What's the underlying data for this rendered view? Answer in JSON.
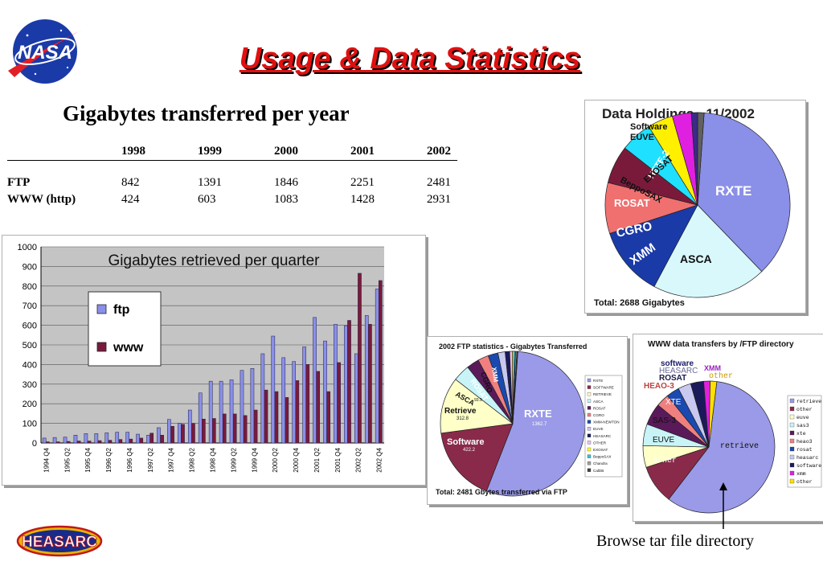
{
  "title": "Usage & Data Statistics",
  "logos": {
    "nasa": "NASA",
    "heasarc": "HEASARC"
  },
  "year_table": {
    "title": "Gigabytes transferred per year",
    "columns": [
      "",
      "1998",
      "1999",
      "2000",
      "2001",
      "2002"
    ],
    "rows": [
      {
        "label": "FTP",
        "values": [
          "842",
          "1391",
          "1846",
          "2251",
          "2481"
        ]
      },
      {
        "label": "WWW (http)",
        "values": [
          "424",
          "603",
          "1083",
          "1428",
          "2931"
        ]
      }
    ]
  },
  "caption": "Browse tar file directory",
  "colors": {
    "title": "#e01010",
    "ftp": "#8a8fe8",
    "www": "#7a1a3a",
    "plot_bg": "#c4c4c4"
  },
  "chart_data": [
    {
      "type": "bar",
      "title": "Gigabytes retrieved per quarter",
      "ylim": [
        0,
        1000
      ],
      "yticks": [
        "0",
        "100",
        "200",
        "300",
        "400",
        "500",
        "600",
        "700",
        "800",
        "900",
        "1000"
      ],
      "legend": "inside-left",
      "grid": true,
      "categories": [
        "1994 Q4",
        "1995 Q1",
        "1995 Q2",
        "1995 Q3",
        "1995 Q4",
        "1996 Q1",
        "1996 Q2",
        "1996 Q3",
        "1996 Q4",
        "1997 Q1",
        "1997 Q2",
        "1997 Q3",
        "1997 Q4",
        "1998 Q1",
        "1998 Q2",
        "1998 Q3",
        "1998 Q4",
        "1999 Q1",
        "1999 Q2",
        "1999 Q3",
        "1999 Q4",
        "2000 Q1",
        "2000 Q2",
        "2000 Q3",
        "2000 Q4",
        "2001 Q1",
        "2001 Q2",
        "2001 Q3",
        "2001 Q4",
        "2002 Q1",
        "2002 Q2",
        "2002 Q3",
        "2002 Q4"
      ],
      "tick_labels": [
        "1994 Q4",
        "1995 Q2",
        "1995 Q4",
        "1996 Q2",
        "1996 Q4",
        "1997 Q2",
        "1997 Q4",
        "1998 Q2",
        "1998 Q4",
        "1999 Q2",
        "1999 Q4",
        "2000 Q2",
        "2000 Q4",
        "2001 Q2",
        "2001 Q4",
        "2002 Q2",
        "2002 Q4"
      ],
      "series": [
        {
          "name": "ftp",
          "values": [
            25,
            28,
            30,
            40,
            48,
            48,
            52,
            55,
            55,
            45,
            40,
            78,
            120,
            100,
            168,
            255,
            315,
            315,
            322,
            370,
            380,
            455,
            545,
            435,
            415,
            490,
            640,
            520,
            605,
            598,
            455,
            650,
            785
          ]
        },
        {
          "name": "www",
          "values": [
            6,
            6,
            8,
            10,
            10,
            12,
            14,
            18,
            20,
            25,
            50,
            40,
            85,
            95,
            100,
            122,
            125,
            148,
            148,
            140,
            168,
            270,
            262,
            232,
            318,
            400,
            365,
            262,
            410,
            625,
            865,
            605,
            828
          ]
        }
      ]
    },
    {
      "type": "pie",
      "title": "Data Holdings - 11/2002",
      "footer": "Total: 2688 Gigabytes",
      "labels": [
        "RXTE",
        "ASCA",
        "XMM",
        "CGRO",
        "ROSAT",
        "BeppoSAX",
        "EXOSAT",
        "HETE-2",
        "EUVE",
        "Software"
      ],
      "values": [
        33,
        18,
        11,
        8,
        6,
        5,
        4,
        3,
        1,
        1
      ]
    },
    {
      "type": "pie",
      "title": "2002 FTP statistics - Gigabytes Transferred",
      "footer": "Total: 2481 Gbytes transferred via FTP",
      "legend": [
        "RXTE",
        "SOFTWARE",
        "RETRIEVE",
        "ASCA",
        "ROSAT",
        "CGRO",
        "XMM-NEWTON",
        "EUVE",
        "HEASARC",
        "OTHER",
        "EXOSAT",
        "BeppoSAX",
        "Chandra",
        "CalDB"
      ],
      "slice_labels": [
        {
          "name": "RXTE",
          "value": "1362.7"
        },
        {
          "name": "Software",
          "value": "422.2"
        },
        {
          "name": "Retrieve",
          "value": "312.8"
        },
        {
          "name": "ASCA",
          "value": "93.9"
        },
        {
          "name": "ROSAT",
          "value": ""
        },
        {
          "name": "CGRO",
          "value": ""
        },
        {
          "name": "XMM",
          "value": ""
        }
      ],
      "values": [
        1362.7,
        422.2,
        312.8,
        93.9,
        70,
        60,
        55,
        40,
        25,
        15,
        10,
        8,
        7,
        5
      ]
    },
    {
      "type": "pie",
      "title": "WWW data transfers by /FTP directory",
      "legend": [
        "retrieve",
        "other",
        "euve",
        "sas3",
        "xte",
        "heao3",
        "rosat",
        "heasarc",
        "software",
        "xmm",
        "other"
      ],
      "slice_labels": [
        "retrieve",
        "other",
        "EUVE",
        "SAS-3",
        "XTE",
        "HEAO-3",
        "ROSAT",
        "HEASARC",
        "software",
        "XMM",
        "other"
      ],
      "values": [
        55,
        9,
        5,
        5,
        5,
        3,
        3,
        3,
        3,
        1.5,
        1.5
      ]
    }
  ]
}
